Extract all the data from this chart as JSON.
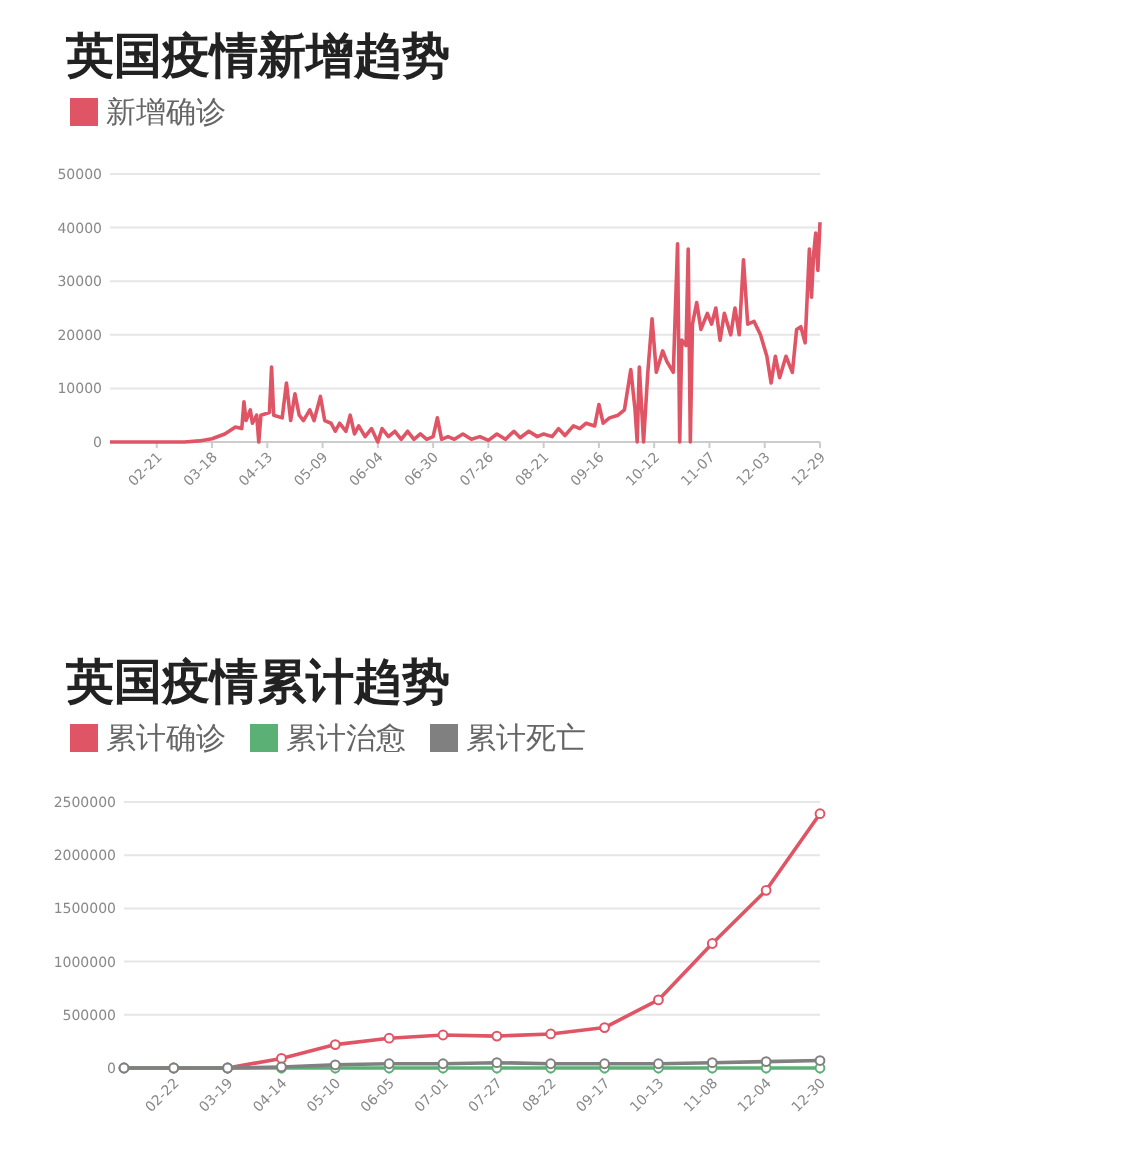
{
  "chart_data": [
    {
      "type": "line",
      "title": "英国疫情新增趋势",
      "legend": "top left",
      "grid": "y",
      "marker": "none",
      "line_style": "solid",
      "xlim": [
        "--01-30",
        "--12-29"
      ],
      "xticks": [
        {
          "value": "--02-21",
          "label": "02-21"
        },
        {
          "value": "--03-18",
          "label": "03-18"
        },
        {
          "value": "--04-13",
          "label": "04-13"
        },
        {
          "value": "--05-09",
          "label": "05-09"
        },
        {
          "value": "--06-04",
          "label": "06-04"
        },
        {
          "value": "--06-30",
          "label": "06-30"
        },
        {
          "value": "--07-26",
          "label": "07-26"
        },
        {
          "value": "--08-21",
          "label": "08-21"
        },
        {
          "value": "--09-16",
          "label": "09-16"
        },
        {
          "value": "--10-12",
          "label": "10-12"
        },
        {
          "value": "--11-07",
          "label": "11-07"
        },
        {
          "value": "--12-03",
          "label": "12-03"
        },
        {
          "value": "--12-29",
          "label": "12-29"
        }
      ],
      "ylim": [
        0,
        50000
      ],
      "yticks": [
        0,
        10000,
        20000,
        30000,
        40000,
        50000
      ],
      "x": [
        "--01-30",
        "--02-21",
        "--03-05",
        "--03-12",
        "--03-18",
        "--03-24",
        "--03-29",
        "--04-01",
        "--04-02",
        "--04-03",
        "--04-05",
        "--04-06",
        "--04-08",
        "--04-09",
        "--04-10",
        "--04-14",
        "--04-15",
        "--04-16",
        "--04-20",
        "--04-22",
        "--04-24",
        "--04-26",
        "--04-28",
        "--04-30",
        "--05-03",
        "--05-05",
        "--05-08",
        "--05-10",
        "--05-13",
        "--05-15",
        "--05-17",
        "--05-20",
        "--05-22",
        "--05-24",
        "--05-26",
        "--05-29",
        "--06-01",
        "--06-04",
        "--06-06",
        "--06-09",
        "--06-12",
        "--06-15",
        "--06-18",
        "--06-21",
        "--06-24",
        "--06-27",
        "--06-30",
        "--07-02",
        "--07-04",
        "--07-07",
        "--07-10",
        "--07-14",
        "--07-18",
        "--07-22",
        "--07-26",
        "--07-30",
        "--08-03",
        "--08-07",
        "--08-10",
        "--08-14",
        "--08-18",
        "--08-21",
        "--08-25",
        "--08-28",
        "--08-31",
        "--09-04",
        "--09-07",
        "--09-10",
        "--09-14",
        "--09-16",
        "--09-18",
        "--09-21",
        "--09-25",
        "--09-28",
        "--10-01",
        "--10-03",
        "--10-04",
        "--10-05",
        "--10-07",
        "--10-09",
        "--10-11",
        "--10-13",
        "--10-16",
        "--10-18",
        "--10-21",
        "--10-23",
        "--10-24",
        "--10-25",
        "--10-27",
        "--10-28",
        "--10-29",
        "--10-30",
        "--11-01",
        "--11-03",
        "--11-06",
        "--11-08",
        "--11-10",
        "--11-12",
        "--11-14",
        "--11-17",
        "--11-19",
        "--11-21",
        "--11-23",
        "--11-25",
        "--11-28",
        "--12-01",
        "--12-04",
        "--12-06",
        "--12-08",
        "--12-10",
        "--12-13",
        "--12-16",
        "--12-18",
        "--12-20",
        "--12-22",
        "--12-24",
        "--12-25",
        "--12-26",
        "--12-27",
        "--12-28",
        "--12-29"
      ],
      "series": [
        {
          "name": "新增确诊",
          "color": "#e05565",
          "values": [
            0,
            0,
            0,
            200,
            600,
            1500,
            2800,
            2500,
            7500,
            4000,
            6000,
            3500,
            5000,
            0,
            5000,
            5500,
            14000,
            5000,
            4500,
            11000,
            4000,
            9000,
            5000,
            4000,
            6000,
            4000,
            8500,
            4000,
            3500,
            2000,
            3500,
            2000,
            5000,
            1500,
            3000,
            1000,
            2500,
            0,
            2500,
            1000,
            2000,
            500,
            2000,
            500,
            1500,
            500,
            1000,
            4500,
            500,
            1000,
            500,
            1500,
            500,
            1000,
            300,
            1500,
            500,
            2000,
            800,
            2000,
            1000,
            1500,
            1000,
            2500,
            1200,
            3000,
            2500,
            3500,
            3000,
            7000,
            3500,
            4500,
            5000,
            6000,
            13500,
            6000,
            0,
            14000,
            0,
            13000,
            23000,
            13000,
            17000,
            15000,
            13000,
            37000,
            0,
            19000,
            18000,
            36000,
            0,
            22000,
            26000,
            21000,
            24000,
            22000,
            25000,
            19000,
            24000,
            20000,
            25000,
            20000,
            34000,
            22000,
            22500,
            20000,
            16000,
            11000,
            16000,
            12000,
            16000,
            13000,
            21000,
            21500,
            18500,
            36000,
            27000,
            35000,
            39000,
            32000,
            41000
          ]
        }
      ]
    },
    {
      "type": "line",
      "title": "英国疫情累计趋势",
      "legend": "top left",
      "grid": "y",
      "marker": "circle",
      "line_style": "solid",
      "xlim": [
        "--01-29",
        "--12-30"
      ],
      "xticks": [
        {
          "value": "--02-22",
          "label": "02-22"
        },
        {
          "value": "--03-19",
          "label": "03-19"
        },
        {
          "value": "--04-14",
          "label": "04-14"
        },
        {
          "value": "--05-10",
          "label": "05-10"
        },
        {
          "value": "--06-05",
          "label": "06-05"
        },
        {
          "value": "--07-01",
          "label": "07-01"
        },
        {
          "value": "--07-27",
          "label": "07-27"
        },
        {
          "value": "--08-22",
          "label": "08-22"
        },
        {
          "value": "--09-17",
          "label": "09-17"
        },
        {
          "value": "--10-13",
          "label": "10-13"
        },
        {
          "value": "--11-08",
          "label": "11-08"
        },
        {
          "value": "--12-04",
          "label": "12-04"
        },
        {
          "value": "--12-30",
          "label": "12-30"
        }
      ],
      "ylim": [
        0,
        2500000
      ],
      "yticks": [
        0,
        500000,
        1000000,
        1500000,
        2000000,
        2500000
      ],
      "x": [
        "--01-29",
        "--02-22",
        "--03-19",
        "--04-14",
        "--05-10",
        "--06-05",
        "--07-01",
        "--07-27",
        "--08-22",
        "--09-17",
        "--10-13",
        "--11-08",
        "--12-04",
        "--12-30"
      ],
      "series": [
        {
          "name": "累计确诊",
          "color": "#e05565",
          "values": [
            0,
            0,
            0,
            90000,
            220000,
            280000,
            310000,
            300000,
            320000,
            380000,
            640000,
            1170000,
            1670000,
            2390000
          ]
        },
        {
          "name": "累计治愈",
          "color": "#5bb075",
          "values": [
            0,
            0,
            0,
            0,
            0,
            0,
            0,
            0,
            0,
            0,
            0,
            0,
            0,
            0
          ]
        },
        {
          "name": "累计死亡",
          "color": "#808080",
          "values": [
            0,
            0,
            0,
            10000,
            30000,
            40000,
            40000,
            50000,
            40000,
            40000,
            40000,
            50000,
            60000,
            70000
          ]
        }
      ]
    }
  ]
}
